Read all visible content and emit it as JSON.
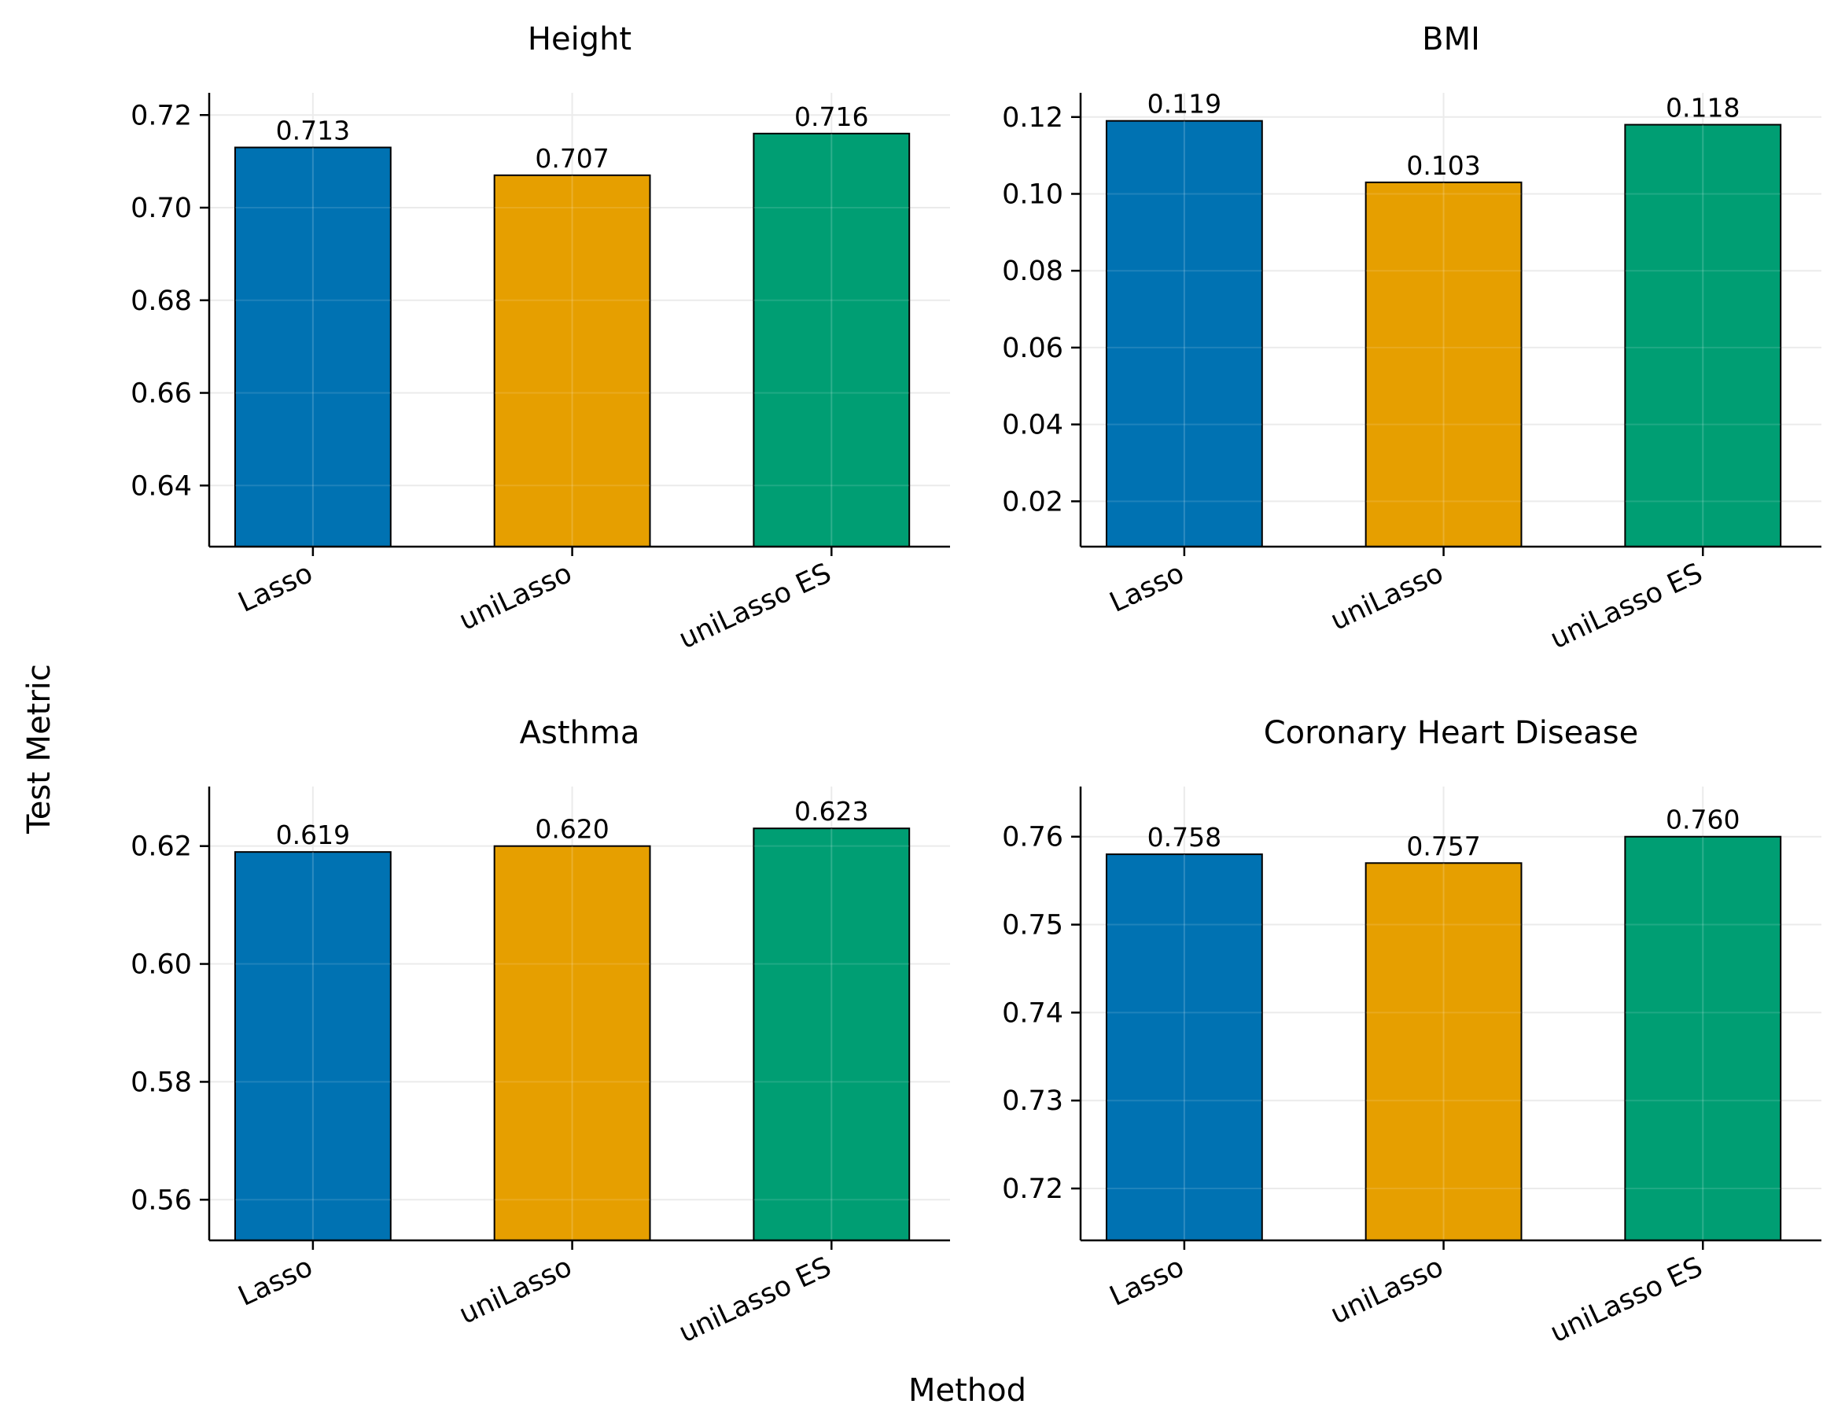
{
  "figure": {
    "ylabel": "Test Metric",
    "xlabel": "Method"
  },
  "chart_data": [
    {
      "type": "bar",
      "title": "Height",
      "categories": [
        "Lasso",
        "uniLasso",
        "uniLasso ES"
      ],
      "values": [
        0.713,
        0.707,
        0.716
      ],
      "value_labels": [
        "0.713",
        "0.707",
        "0.716"
      ],
      "colors": [
        "#0072B2",
        "#E69F00",
        "#009E73"
      ],
      "ylim": [
        0.6268,
        0.7248
      ],
      "yticks": [
        0.64,
        0.66,
        0.68,
        0.7,
        0.72
      ],
      "ytick_labels": [
        "0.64",
        "0.66",
        "0.68",
        "0.70",
        "0.72"
      ],
      "grid": true
    },
    {
      "type": "bar",
      "title": "BMI",
      "categories": [
        "Lasso",
        "uniLasso",
        "uniLasso ES"
      ],
      "values": [
        0.119,
        0.103,
        0.118
      ],
      "value_labels": [
        "0.119",
        "0.103",
        "0.118"
      ],
      "colors": [
        "#0072B2",
        "#E69F00",
        "#009E73"
      ],
      "ylim": [
        0.0082,
        0.1263
      ],
      "yticks": [
        0.02,
        0.04,
        0.06,
        0.08,
        0.1,
        0.12
      ],
      "ytick_labels": [
        "0.02",
        "0.04",
        "0.06",
        "0.08",
        "0.10",
        "0.12"
      ],
      "grid": true
    },
    {
      "type": "bar",
      "title": "Asthma",
      "categories": [
        "Lasso",
        "uniLasso",
        "uniLasso ES"
      ],
      "values": [
        0.619,
        0.62,
        0.623
      ],
      "value_labels": [
        "0.619",
        "0.620",
        "0.623"
      ],
      "colors": [
        "#0072B2",
        "#E69F00",
        "#009E73"
      ],
      "ylim": [
        0.5531,
        0.6301
      ],
      "yticks": [
        0.56,
        0.58,
        0.6,
        0.62
      ],
      "ytick_labels": [
        "0.56",
        "0.58",
        "0.60",
        "0.62"
      ],
      "grid": true
    },
    {
      "type": "bar",
      "title": "Coronary Heart Disease",
      "categories": [
        "Lasso",
        "uniLasso",
        "uniLasso ES"
      ],
      "values": [
        0.758,
        0.757,
        0.76
      ],
      "value_labels": [
        "0.758",
        "0.757",
        "0.760"
      ],
      "colors": [
        "#0072B2",
        "#E69F00",
        "#009E73"
      ],
      "ylim": [
        0.7141,
        0.7657
      ],
      "yticks": [
        0.72,
        0.73,
        0.74,
        0.75,
        0.76
      ],
      "ytick_labels": [
        "0.72",
        "0.73",
        "0.74",
        "0.75",
        "0.76"
      ],
      "grid": true
    }
  ]
}
